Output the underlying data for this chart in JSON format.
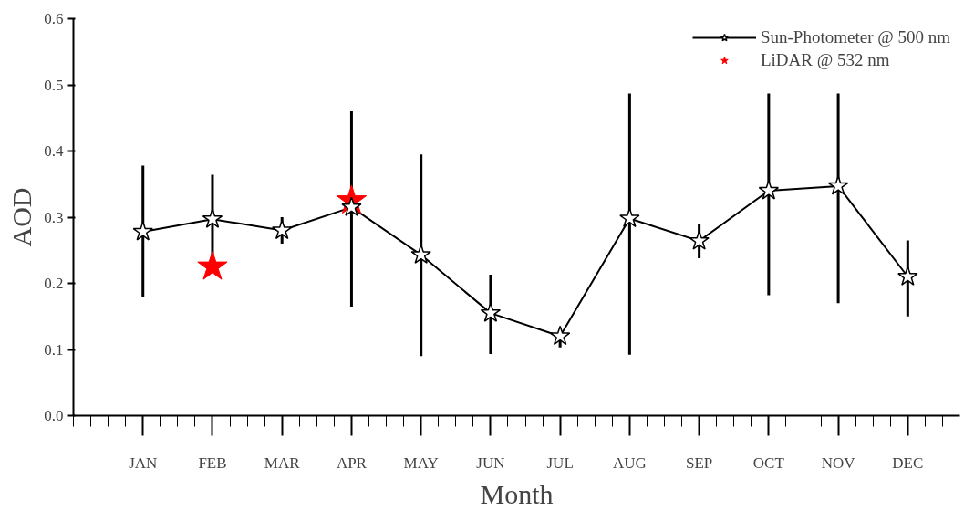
{
  "chart_data": {
    "type": "line",
    "xlabel": "Month",
    "ylabel": "AOD",
    "categories": [
      "JAN",
      "FEB",
      "MAR",
      "APR",
      "MAY",
      "JUN",
      "JUL",
      "AUG",
      "SEP",
      "OCT",
      "NOV",
      "DEC"
    ],
    "series": [
      {
        "name": "Sun-Photometer @ 500 nm",
        "color": "#000000",
        "marker": "star",
        "values": [
          0.278,
          0.297,
          0.28,
          0.315,
          0.243,
          0.155,
          0.12,
          0.298,
          0.264,
          0.34,
          0.347,
          0.21
        ],
        "errors": [
          [
            0.18,
            0.378
          ],
          [
            0.23,
            0.364
          ],
          [
            0.26,
            0.3
          ],
          [
            0.165,
            0.46
          ],
          [
            0.09,
            0.395
          ],
          [
            0.093,
            0.213
          ],
          [
            0.103,
            0.13
          ],
          [
            0.092,
            0.487
          ],
          [
            0.238,
            0.29
          ],
          [
            0.182,
            0.487
          ],
          [
            0.17,
            0.487
          ],
          [
            0.15,
            0.265
          ]
        ]
      },
      {
        "name": "LiDAR @ 532 nm",
        "type": "scatter",
        "color": "#ff0000",
        "marker": "star",
        "values": [
          null,
          0.225,
          null,
          0.325,
          null,
          null,
          null,
          null,
          null,
          null,
          null,
          null
        ]
      }
    ],
    "ylim": [
      0,
      0.6
    ],
    "yticks": [
      {
        "value": 0,
        "label": "0.0"
      },
      0.1,
      0.2,
      0.3,
      0.4,
      0.5,
      0.6
    ],
    "legend": "top right",
    "grid": false
  }
}
